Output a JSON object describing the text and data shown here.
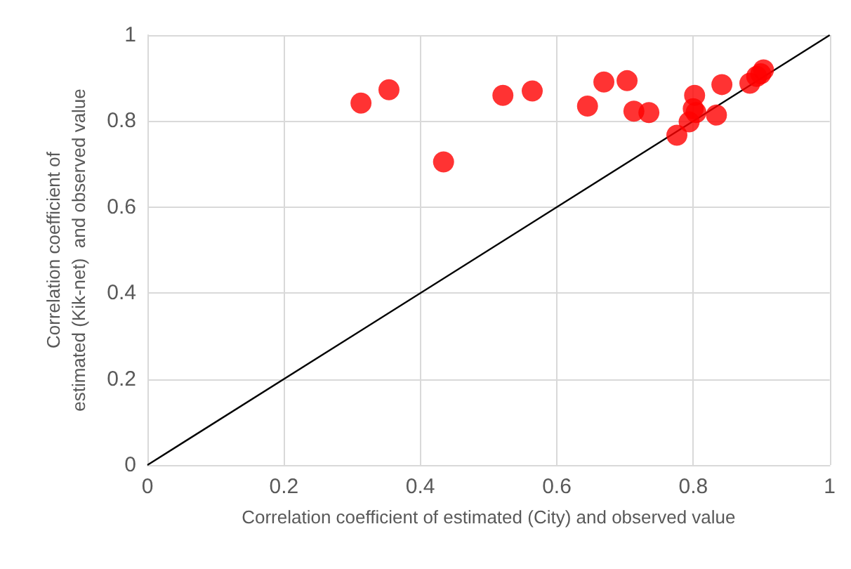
{
  "chart_data": {
    "type": "scatter",
    "xlabel": "Correlation coefficient of estimated (City) and observed value",
    "ylabel": "Correlation coefficient of\nestimated (Kik-net)  and observed value",
    "xlim": [
      0,
      1
    ],
    "ylim": [
      0,
      1
    ],
    "xticks": [
      0,
      0.2,
      0.4,
      0.6,
      0.8,
      1
    ],
    "yticks": [
      0,
      0.2,
      0.4,
      0.6,
      0.8,
      1
    ],
    "grid": true,
    "series": [
      {
        "color": "#ff0000",
        "marker": "circle",
        "x": [
          0.313,
          0.354,
          0.434,
          0.521,
          0.564,
          0.645,
          0.669,
          0.703,
          0.713,
          0.735,
          0.776,
          0.802,
          0.8,
          0.794,
          0.804,
          0.834,
          0.842,
          0.883,
          0.893,
          0.903,
          0.899
        ],
        "values": [
          0.842,
          0.873,
          0.705,
          0.86,
          0.87,
          0.835,
          0.891,
          0.894,
          0.823,
          0.82,
          0.767,
          0.86,
          0.829,
          0.798,
          0.82,
          0.814,
          0.885,
          0.888,
          0.904,
          0.919,
          0.91
        ]
      },
      {
        "type": "line",
        "color": "#000000",
        "marker": "none",
        "line_style": "solid",
        "x": [
          0,
          1
        ],
        "values": [
          0,
          1
        ]
      }
    ]
  }
}
